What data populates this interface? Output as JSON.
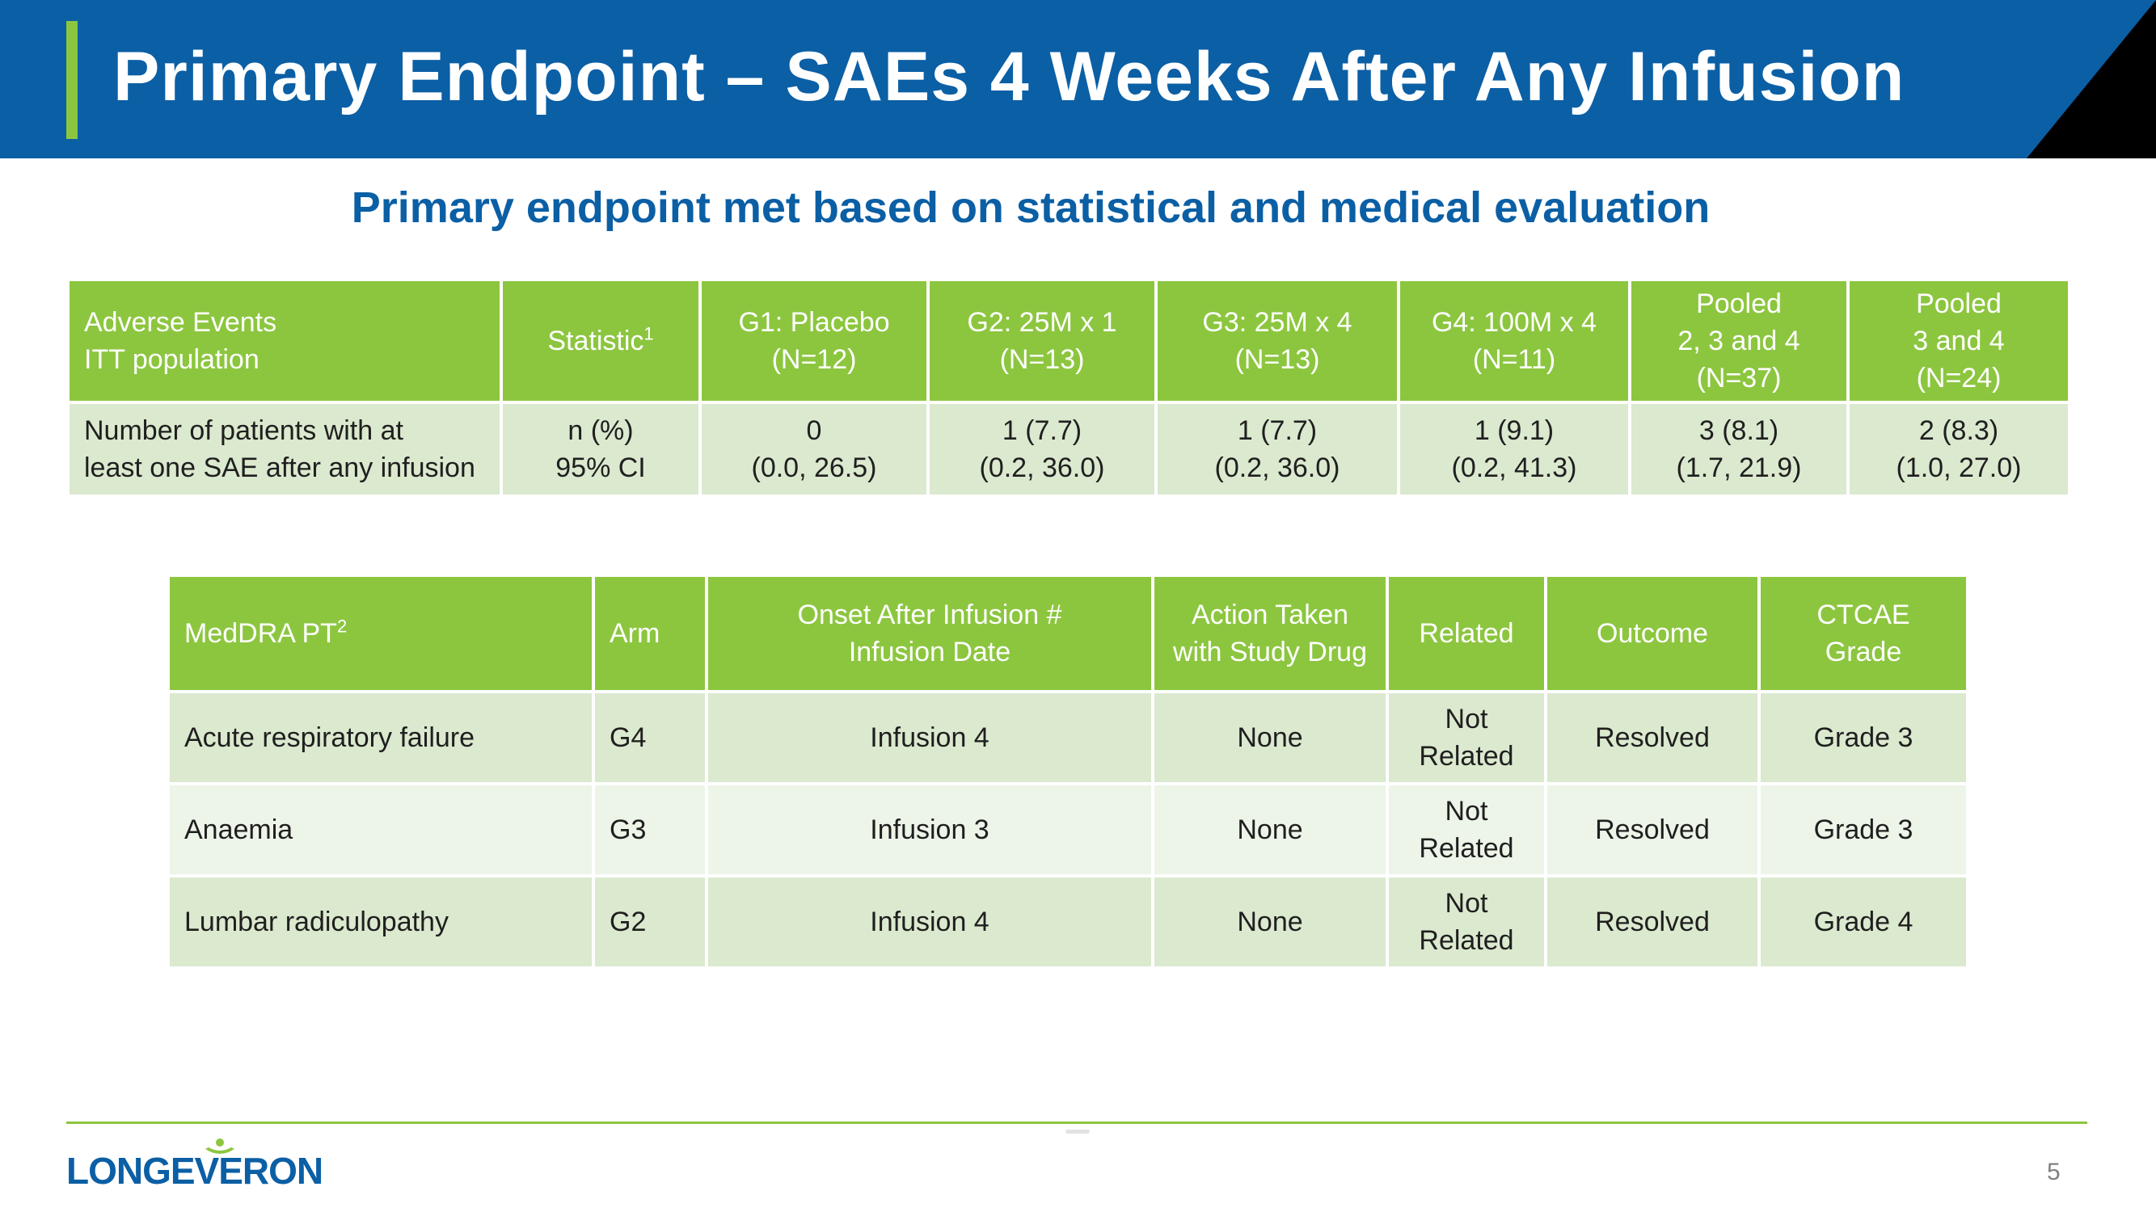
{
  "title": "Primary Endpoint – SAEs 4 Weeks After Any Infusion",
  "subtitle": "Primary endpoint met based on statistical and medical evaluation",
  "table1": {
    "headers": {
      "col0_line1": "Adverse Events",
      "col0_line2": "ITT population",
      "col1": "Statistic",
      "col1_sup": "1",
      "col2_line1": "G1: Placebo",
      "col2_line2": "(N=12)",
      "col3_line1": "G2: 25M x 1",
      "col3_line2": "(N=13)",
      "col4_line1": "G3: 25M x 4",
      "col4_line2": "(N=13)",
      "col5_line1": "G4: 100M x 4",
      "col5_line2": "(N=11)",
      "col6_line1": "Pooled",
      "col6_line2": "2, 3 and 4",
      "col6_line3": "(N=37)",
      "col7_line1": "Pooled",
      "col7_line2": "3 and 4",
      "col7_line3": "(N=24)"
    },
    "row": {
      "label_line1": "Number of patients with at",
      "label_line2": "least one SAE after any infusion",
      "stat_line1": "n (%)",
      "stat_line2": "95% CI",
      "g1_line1": "0",
      "g1_line2": "(0.0, 26.5)",
      "g2_line1": "1 (7.7)",
      "g2_line2": "(0.2, 36.0)",
      "g3_line1": "1 (7.7)",
      "g3_line2": "(0.2, 36.0)",
      "g4_line1": "1 (9.1)",
      "g4_line2": "(0.2, 41.3)",
      "p234_line1": "3 (8.1)",
      "p234_line2": "(1.7, 21.9)",
      "p34_line1": "2 (8.3)",
      "p34_line2": "(1.0, 27.0)"
    }
  },
  "table2": {
    "headers": {
      "pt": "MedDRA PT",
      "pt_sup": "2",
      "arm": "Arm",
      "onset_line1": "Onset After Infusion #",
      "onset_line2": "Infusion Date",
      "action_line1": "Action Taken",
      "action_line2": "with Study Drug",
      "related": "Related",
      "outcome": "Outcome",
      "grade_line1": "CTCAE",
      "grade_line2": "Grade"
    },
    "rows": [
      {
        "pt": "Acute respiratory failure",
        "arm": "G4",
        "onset": "Infusion 4",
        "action": "None",
        "related_line1": "Not",
        "related_line2": "Related",
        "outcome": "Resolved",
        "grade": "Grade 3"
      },
      {
        "pt": "Anaemia",
        "arm": "G3",
        "onset": "Infusion 3",
        "action": "None",
        "related_line1": "Not",
        "related_line2": "Related",
        "outcome": "Resolved",
        "grade": "Grade 3"
      },
      {
        "pt": "Lumbar radiculopathy",
        "arm": "G2",
        "onset": "Infusion 4",
        "action": "None",
        "related_line1": "Not",
        "related_line2": "Related",
        "outcome": "Resolved",
        "grade": "Grade 4"
      }
    ]
  },
  "footer": {
    "logo": "LONGEVERON",
    "page_number": "5"
  },
  "colors": {
    "header_blue": "#0b5fa5",
    "accent_green": "#8cc63f",
    "row_dark": "#dbe9cf",
    "row_light": "#edf4e8"
  }
}
